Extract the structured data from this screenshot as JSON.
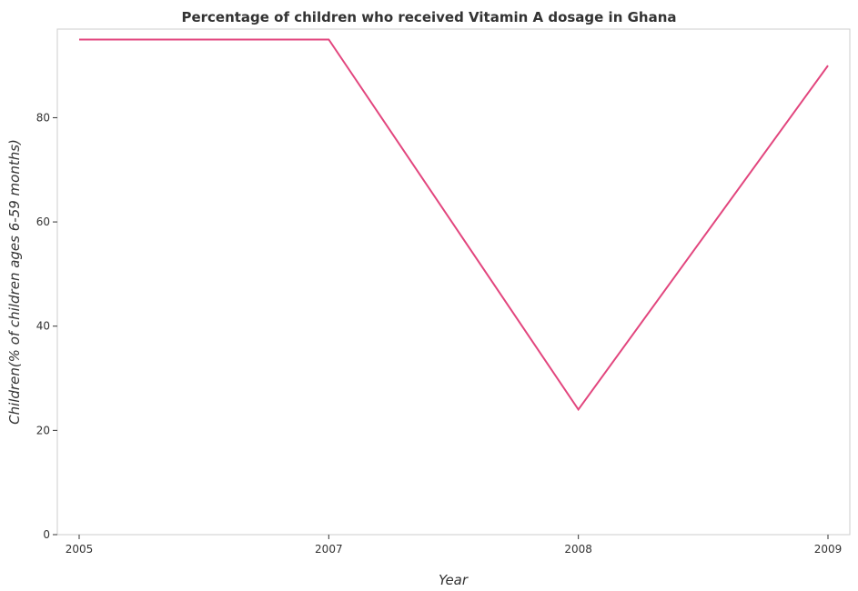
{
  "chart_data": {
    "type": "line",
    "title": "Percentage of children who received Vitamin A dosage in Ghana",
    "xlabel": "Year",
    "ylabel": "Children(% of children ages 6-59 months)",
    "categories": [
      "2005",
      "2007",
      "2008",
      "2009"
    ],
    "series": [
      {
        "values": [
          95,
          95,
          24,
          90
        ],
        "color": "#e2467e"
      }
    ],
    "ylim": [
      0,
      97
    ],
    "yticks": [
      0,
      20,
      40,
      60,
      80
    ],
    "grid": false,
    "legend": "none"
  }
}
